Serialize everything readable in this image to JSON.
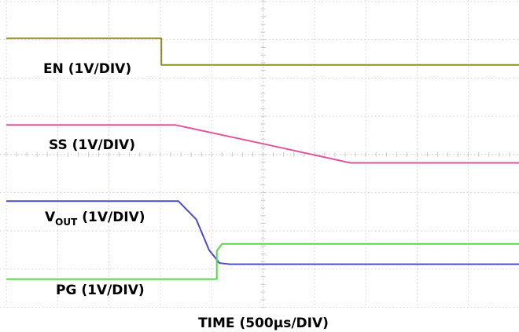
{
  "chart_data": {
    "type": "line",
    "xlabel": "TIME (500µs/DIV)",
    "x_divisions": 10,
    "y_divisions": 8,
    "grid": true,
    "grid_style": "dotted",
    "colors": {
      "EN": "#8b8b25",
      "SS": "#e0559a",
      "VOUT": "#4c4cc8",
      "PG": "#55d84a",
      "grid": "#c9c9c9"
    },
    "series": [
      {
        "name": "EN",
        "label": {
          "main": "EN (1V/DIV)"
        },
        "unit_div": [
          [
            0,
            0.96
          ],
          [
            3.02,
            0.96
          ],
          [
            3.02,
            1.66
          ],
          [
            10.2,
            1.66
          ]
        ]
      },
      {
        "name": "SS",
        "label": {
          "main": "SS (1V/DIV)"
        },
        "unit_div": [
          [
            0,
            3.23
          ],
          [
            3.3,
            3.23
          ],
          [
            5.0,
            3.72
          ],
          [
            6.7,
            4.22
          ],
          [
            10.2,
            4.22
          ]
        ]
      },
      {
        "name": "VOUT",
        "label": {
          "main": "V",
          "sub": "OUT",
          "rest": " (1V/DIV)"
        },
        "unit_div": [
          [
            0,
            5.22
          ],
          [
            3.35,
            5.22
          ],
          [
            3.7,
            5.7
          ],
          [
            3.95,
            6.5
          ],
          [
            4.15,
            6.84
          ],
          [
            4.35,
            6.87
          ],
          [
            10.2,
            6.87
          ]
        ]
      },
      {
        "name": "PG",
        "label": {
          "main": "PG (1V/DIV)"
        },
        "unit_div": [
          [
            0,
            7.26
          ],
          [
            4.1,
            7.26
          ],
          [
            4.1,
            6.52
          ],
          [
            4.2,
            6.34
          ],
          [
            10.2,
            6.34
          ]
        ]
      }
    ]
  }
}
